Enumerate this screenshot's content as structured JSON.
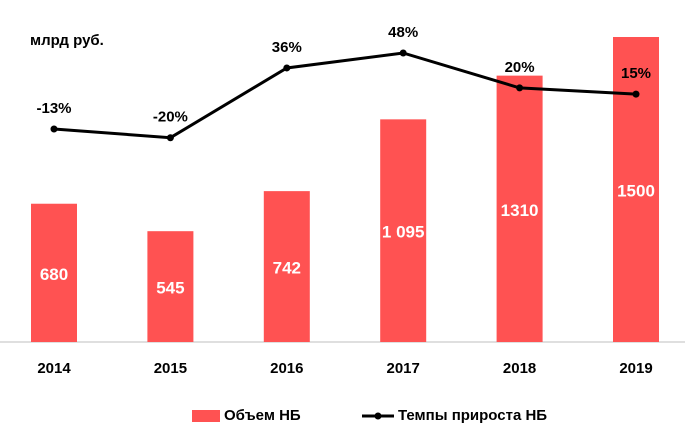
{
  "unit_label": "млрд руб.",
  "colors": {
    "bar": "#ff5252",
    "line": "#000000",
    "bar_label": "#ffffff",
    "axis": "#bfbfbf"
  },
  "legend": {
    "bar_label": "Объем НБ",
    "line_label": "Темпы прироста НБ"
  },
  "chart_data": {
    "type": "bar+line",
    "categories": [
      "2014",
      "2015",
      "2016",
      "2017",
      "2018",
      "2019"
    ],
    "series": [
      {
        "name": "Объем НБ",
        "type": "bar",
        "values": [
          680,
          545,
          742,
          1095,
          1310,
          1500
        ],
        "labels": [
          "680",
          "545",
          "742",
          "1 095",
          "1310",
          "1500"
        ]
      },
      {
        "name": "Темпы прироста НБ",
        "type": "line",
        "values": [
          -13,
          -20,
          36,
          48,
          20,
          15
        ],
        "labels": [
          "-13%",
          "-20%",
          "36%",
          "48%",
          "20%",
          "15%"
        ]
      }
    ],
    "bar_ylim": [
      0,
      1500
    ],
    "line_ylim": [
      -30,
      50
    ],
    "grid": false,
    "legend_position": "bottom"
  }
}
